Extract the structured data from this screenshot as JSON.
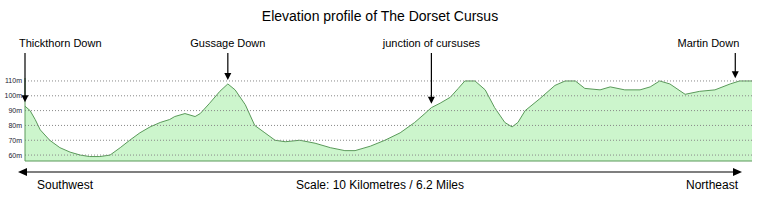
{
  "chart_data": {
    "type": "area",
    "title": "Elevation profile of The Dorset Cursus",
    "x": [
      0,
      0.07,
      0.14,
      0.21,
      0.34,
      0.48,
      0.62,
      0.76,
      0.89,
      1.03,
      1.17,
      1.31,
      1.44,
      1.58,
      1.72,
      1.86,
      1.99,
      2.06,
      2.2,
      2.34,
      2.41,
      2.54,
      2.68,
      2.79,
      2.89,
      3.03,
      3.16,
      3.3,
      3.44,
      3.58,
      3.78,
      3.99,
      4.2,
      4.4,
      4.54,
      4.75,
      4.95,
      5.16,
      5.36,
      5.5,
      5.59,
      5.71,
      5.85,
      5.96,
      6.05,
      6.19,
      6.33,
      6.46,
      6.6,
      6.7,
      6.78,
      6.88,
      7.08,
      7.29,
      7.43,
      7.57,
      7.7,
      7.91,
      8.05,
      8.25,
      8.46,
      8.6,
      8.73,
      8.87,
      9.08,
      9.28,
      9.49,
      9.7,
      9.83,
      10
    ],
    "values": [
      93,
      90,
      84,
      77,
      70,
      65,
      62,
      60,
      59,
      59,
      60,
      65,
      70,
      75,
      79,
      82,
      84,
      86,
      88,
      86,
      88,
      95,
      103,
      108,
      104,
      94,
      80,
      75,
      70,
      69,
      70,
      68,
      65,
      63,
      63,
      66,
      70,
      75,
      82,
      88,
      92,
      95,
      99,
      105,
      110,
      110,
      104,
      92,
      82,
      79,
      82,
      90,
      98,
      107,
      110,
      110,
      105,
      104,
      106,
      104,
      104,
      106,
      110,
      108,
      101,
      103,
      104,
      108,
      110,
      110
    ],
    "color": "#ccf5cc",
    "xlim": [
      0,
      10
    ],
    "ylim": [
      56,
      112
    ],
    "yticks": [
      {
        "value": 60,
        "label": "60m"
      },
      {
        "value": 70,
        "label": "70m"
      },
      {
        "value": 80,
        "label": "80m"
      },
      {
        "value": 90,
        "label": "90m"
      },
      {
        "value": 100,
        "label": "100m"
      },
      {
        "value": 110,
        "label": "110m"
      }
    ],
    "grid": true,
    "tick_labels": "y",
    "annotations": [
      {
        "text": "Thickthorn Down",
        "x": 0
      },
      {
        "text": "Gussage Down",
        "x": 2.79
      },
      {
        "text": "junction of cursuses",
        "x": 5.59
      },
      {
        "text": "Martin Down",
        "x": 9.77
      }
    ],
    "xlabel": "Scale: 10 Kilometres / 6.2 Miles",
    "direction_labels": [
      "Southwest",
      "Northeast"
    ]
  }
}
